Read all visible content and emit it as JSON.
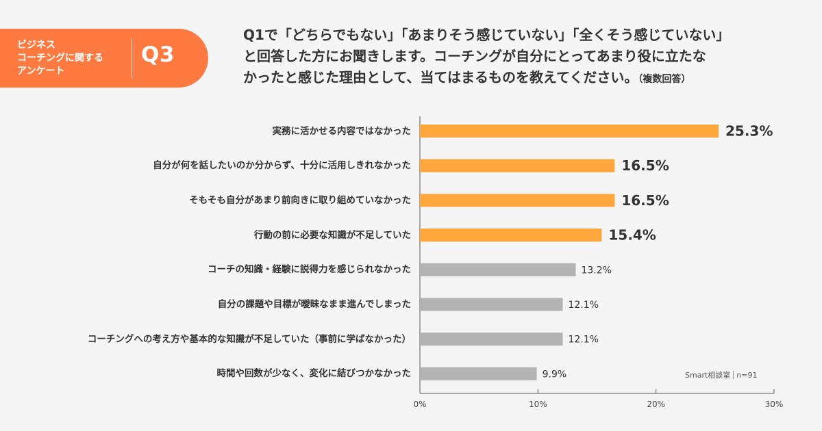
{
  "badge": {
    "lines": [
      "ビジネス",
      "コーチングに関する",
      "アンケート"
    ],
    "number": "Q3"
  },
  "question": {
    "lines": [
      "Q1で「どちらでもない」「あまりそう感じていない」「全くそう感じていない」",
      "と回答した方にお聞きします。コーチングが自分にとってあまり役に立たな",
      "かったと感じた理由として、当てはまるものを教えてください。"
    ],
    "note": "（複数回答）"
  },
  "source": {
    "brand": "Smart相談室",
    "n": "n=91"
  },
  "colors": {
    "highlight": "#ffa63d",
    "normal": "#b3b3b3",
    "badge": "#ff7a40"
  },
  "chart_data": {
    "type": "bar",
    "orientation": "horizontal",
    "categories": [
      "実務に活かせる内容ではなかった",
      "自分が何を話したいのか分からず、十分に活用しきれなかった",
      "そもそも自分があまり前向きに取り組めていなかった",
      "行動の前に必要な知識が不足していた",
      "コーチの知識・経験に説得力を感じられなかった",
      "自分の課題や目標が曖昧なまま進んでしまった",
      "コーチングへの考え方や基本的な知識が不足していた（事前に学ばなかった）",
      "時間や回数が少なく、変化に結びつかなかった"
    ],
    "values": [
      25.3,
      16.5,
      16.5,
      15.4,
      13.2,
      12.1,
      12.1,
      9.9
    ],
    "value_labels": [
      "25.3%",
      "16.5%",
      "16.5%",
      "15.4%",
      "13.2%",
      "12.1%",
      "12.1%",
      "9.9%"
    ],
    "highlighted": [
      true,
      true,
      true,
      true,
      false,
      false,
      false,
      false
    ],
    "xlim": [
      0,
      30
    ],
    "xticks": [
      0,
      10,
      20,
      30
    ],
    "xtick_labels": [
      "0%",
      "10%",
      "20%",
      "30%"
    ],
    "grid": false
  }
}
